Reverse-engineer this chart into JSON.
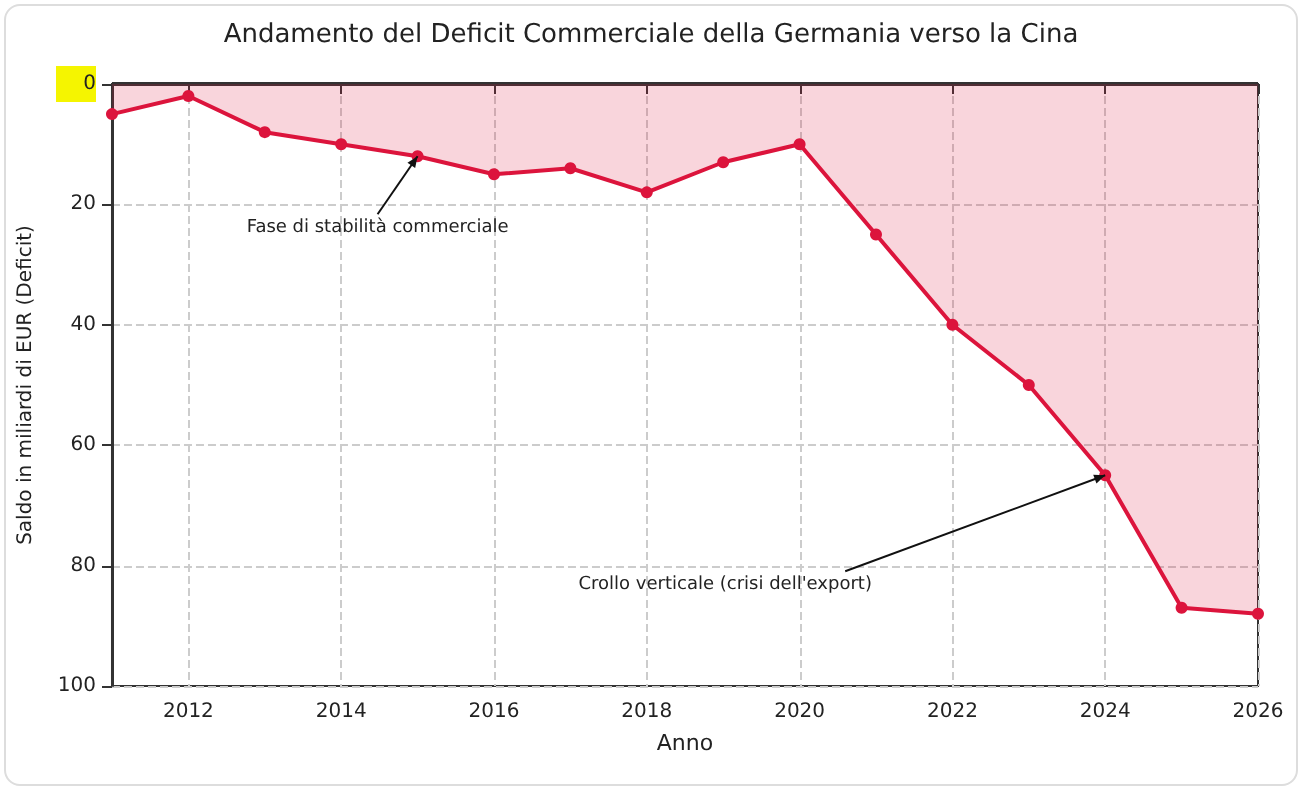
{
  "chart_data": {
    "type": "area",
    "title": "Andamento del Deficit Commerciale della Germania verso la Cina",
    "xlabel": "Anno",
    "ylabel": "Saldo in miliardi di EUR (Deficit)",
    "x": [
      2011,
      2012,
      2013,
      2014,
      2015,
      2016,
      2017,
      2018,
      2019,
      2020,
      2021,
      2022,
      2023,
      2024,
      2025,
      2026
    ],
    "series": [
      {
        "color": "#dc143c",
        "values": [
          5,
          2,
          8,
          10,
          12,
          15,
          14,
          18,
          13,
          10,
          25,
          40,
          50,
          65,
          87,
          88
        ]
      }
    ],
    "xlim": [
      2011,
      2026
    ],
    "xticks": [
      2012,
      2014,
      2016,
      2018,
      2020,
      2022,
      2024,
      2026
    ],
    "ylim": [
      100,
      0
    ],
    "yticks": [
      0,
      20,
      40,
      60,
      80,
      100
    ],
    "ref_lines": [
      {
        "axis": "y",
        "value": 0,
        "color": "#333333"
      }
    ],
    "annotations": [
      {
        "text": "Fase di stabilità commerciale",
        "x": 2015,
        "y": 12
      },
      {
        "text": "Crollo verticale (crisi dell'export)",
        "x": 2024,
        "y": 65
      }
    ],
    "grid": true,
    "marker": "circle",
    "line_style": "solid"
  }
}
